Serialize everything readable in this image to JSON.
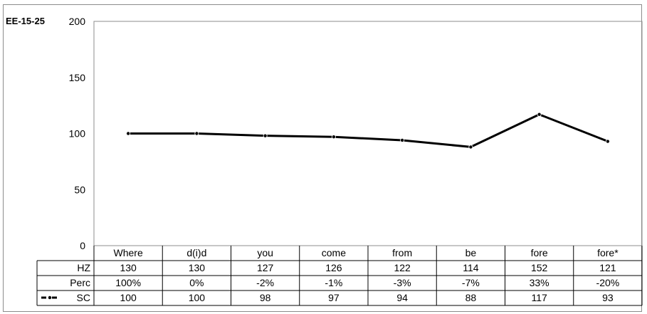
{
  "speaker_label": "EE-15-25",
  "chart_data": {
    "type": "line",
    "categories": [
      "Where",
      "d(i)d",
      "you",
      "come",
      "from",
      "be",
      "fore",
      "fore*"
    ],
    "ylim": [
      0,
      200
    ],
    "yticks": [
      "0",
      "50",
      "100",
      "150",
      "200"
    ],
    "grid": false,
    "series": [
      {
        "name": "SC",
        "values": [
          100,
          100,
          98,
          97,
          94,
          88,
          117,
          93
        ],
        "color": "#000000",
        "style": "dash-dot"
      }
    ],
    "table": {
      "rows": [
        {
          "label": "HZ",
          "values": [
            "130",
            "130",
            "127",
            "126",
            "122",
            "114",
            "152",
            "121"
          ]
        },
        {
          "label": "Perc",
          "values": [
            "100%",
            "0%",
            "-2%",
            "-1%",
            "-3%",
            "-7%",
            "33%",
            "-20%"
          ]
        },
        {
          "label": "SC",
          "values": [
            "100",
            "100",
            "98",
            "97",
            "94",
            "88",
            "117",
            "93"
          ]
        }
      ]
    }
  }
}
